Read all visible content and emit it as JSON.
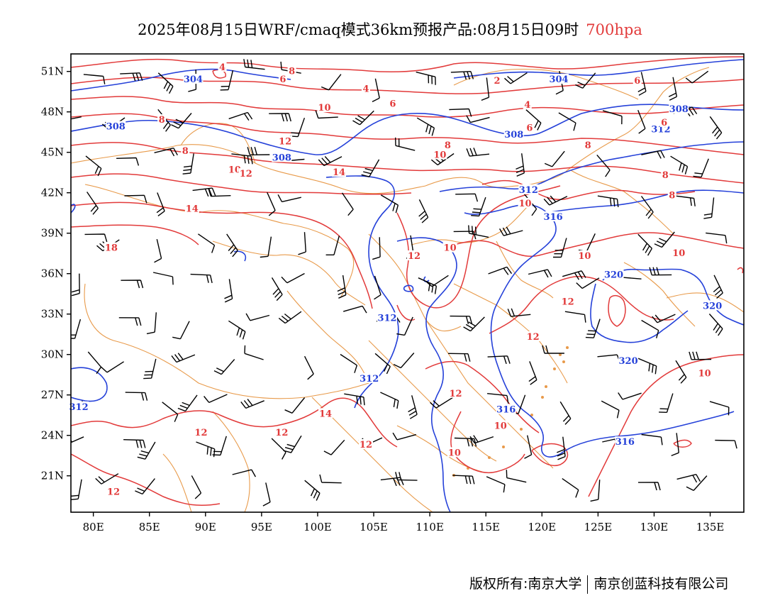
{
  "title": {
    "main": "2025年08月15日WRF/cmaq模式36km预报产品:08月15日09时",
    "level": "700hpa"
  },
  "axes": {
    "lat_labels": [
      "51N",
      "48N",
      "45N",
      "42N",
      "39N",
      "36N",
      "33N",
      "30N",
      "27N",
      "24N",
      "21N"
    ],
    "lat_values": [
      51,
      48,
      45,
      42,
      39,
      36,
      33,
      30,
      27,
      24,
      21
    ],
    "lon_labels": [
      "80E",
      "85E",
      "90E",
      "95E",
      "100E",
      "105E",
      "110E",
      "115E",
      "120E",
      "125E",
      "130E",
      "135E"
    ],
    "lon_values": [
      80,
      85,
      90,
      95,
      100,
      105,
      110,
      115,
      120,
      125,
      130,
      135
    ],
    "lon_range": [
      78,
      138
    ],
    "lat_range": [
      18.3,
      52.3
    ]
  },
  "colors": {
    "height_contour": "#2541d9",
    "temp_contour": "#e23a3a",
    "boundary": "#e89a4a",
    "wind_barb": "#000000",
    "level_text": "#e23a3a"
  },
  "height_labels": [
    {
      "text": "304",
      "lon": 88.9,
      "lat": 50.4
    },
    {
      "text": "304",
      "lon": 121.5,
      "lat": 50.4
    },
    {
      "text": "308",
      "lon": 82.0,
      "lat": 46.9
    },
    {
      "text": "308",
      "lon": 96.8,
      "lat": 44.6
    },
    {
      "text": "308",
      "lon": 117.5,
      "lat": 46.3
    },
    {
      "text": "308",
      "lon": 132.2,
      "lat": 48.2
    },
    {
      "text": "312",
      "lon": 118.8,
      "lat": 42.2
    },
    {
      "text": "312",
      "lon": 130.6,
      "lat": 46.7
    },
    {
      "text": "316",
      "lon": 121.0,
      "lat": 40.2
    },
    {
      "text": "312",
      "lon": 106.2,
      "lat": 32.7
    },
    {
      "text": "312",
      "lon": 78.7,
      "lat": 26.1
    },
    {
      "text": "312",
      "lon": 104.6,
      "lat": 28.2
    },
    {
      "text": "316",
      "lon": 116.8,
      "lat": 25.9
    },
    {
      "text": "316",
      "lon": 127.4,
      "lat": 23.5
    },
    {
      "text": "320",
      "lon": 126.4,
      "lat": 35.9
    },
    {
      "text": "320",
      "lon": 135.2,
      "lat": 33.6
    },
    {
      "text": "320",
      "lon": 127.7,
      "lat": 29.5
    }
  ],
  "temp_labels": [
    {
      "text": "4",
      "lon": 91.5,
      "lat": 51.3
    },
    {
      "text": "8",
      "lon": 97.7,
      "lat": 51.0
    },
    {
      "text": "6",
      "lon": 96.9,
      "lat": 50.4
    },
    {
      "text": "4",
      "lon": 104.3,
      "lat": 49.7
    },
    {
      "text": "2",
      "lon": 116.0,
      "lat": 50.3
    },
    {
      "text": "4",
      "lon": 118.7,
      "lat": 48.5
    },
    {
      "text": "6",
      "lon": 128.5,
      "lat": 50.3
    },
    {
      "text": "8",
      "lon": 86.1,
      "lat": 47.4
    },
    {
      "text": "10",
      "lon": 100.6,
      "lat": 48.3
    },
    {
      "text": "6",
      "lon": 106.7,
      "lat": 48.6
    },
    {
      "text": "12",
      "lon": 97.1,
      "lat": 45.8
    },
    {
      "text": "8",
      "lon": 88.2,
      "lat": 45.1
    },
    {
      "text": "8",
      "lon": 111.6,
      "lat": 45.5
    },
    {
      "text": "10",
      "lon": 110.9,
      "lat": 44.8
    },
    {
      "text": "6",
      "lon": 118.9,
      "lat": 46.8
    },
    {
      "text": "8",
      "lon": 124.1,
      "lat": 45.5
    },
    {
      "text": "6",
      "lon": 130.9,
      "lat": 47.2
    },
    {
      "text": "10",
      "lon": 92.6,
      "lat": 43.7
    },
    {
      "text": "12",
      "lon": 93.6,
      "lat": 43.4
    },
    {
      "text": "14",
      "lon": 101.9,
      "lat": 43.5
    },
    {
      "text": "8",
      "lon": 131.0,
      "lat": 43.3
    },
    {
      "text": "8",
      "lon": 131.6,
      "lat": 41.8
    },
    {
      "text": "14",
      "lon": 88.8,
      "lat": 40.8
    },
    {
      "text": "10",
      "lon": 118.5,
      "lat": 41.2
    },
    {
      "text": "18",
      "lon": 81.6,
      "lat": 37.9
    },
    {
      "text": "12",
      "lon": 108.6,
      "lat": 37.3
    },
    {
      "text": "10",
      "lon": 111.8,
      "lat": 37.9
    },
    {
      "text": "10",
      "lon": 123.8,
      "lat": 37.3
    },
    {
      "text": "10",
      "lon": 132.2,
      "lat": 37.5
    },
    {
      "text": "12",
      "lon": 122.3,
      "lat": 33.9
    },
    {
      "text": "12",
      "lon": 119.2,
      "lat": 31.3
    },
    {
      "text": "10",
      "lon": 134.5,
      "lat": 28.6
    },
    {
      "text": "12",
      "lon": 112.3,
      "lat": 27.1
    },
    {
      "text": "14",
      "lon": 100.7,
      "lat": 25.6
    },
    {
      "text": "12",
      "lon": 89.6,
      "lat": 24.2
    },
    {
      "text": "12",
      "lon": 96.8,
      "lat": 24.2
    },
    {
      "text": "10",
      "lon": 116.3,
      "lat": 24.7
    },
    {
      "text": "12",
      "lon": 104.3,
      "lat": 23.3
    },
    {
      "text": "10",
      "lon": 112.2,
      "lat": 22.7
    },
    {
      "text": "12",
      "lon": 81.8,
      "lat": 19.8
    }
  ],
  "copyright": {
    "owner": "版权所有:南京大学",
    "partner": "南京创蓝科技有限公司"
  }
}
